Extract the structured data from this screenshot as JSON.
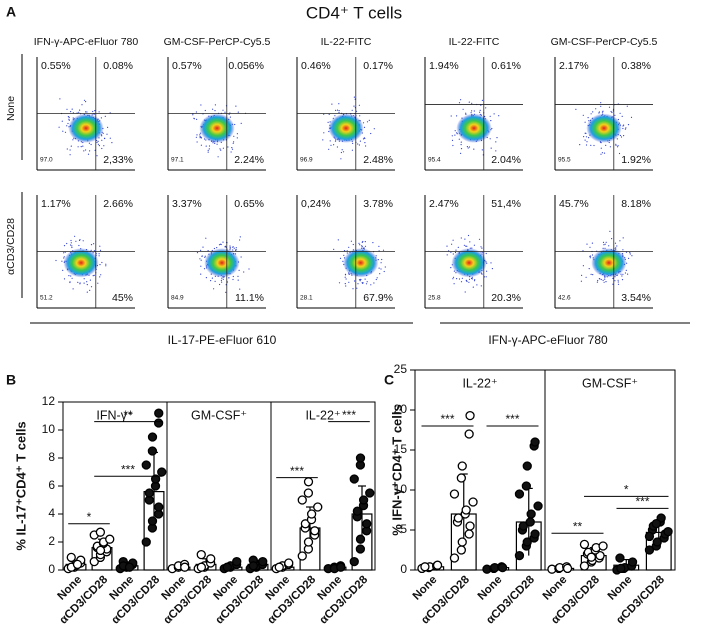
{
  "panel_a": {
    "label": "A",
    "title": "CD4⁺ T cells",
    "row_labels": [
      "None",
      "αCD3/CD28"
    ],
    "columns": [
      {
        "header": "IFN-γ-APC-eFluor 780",
        "plots": [
          {
            "ul": "0.55%",
            "ur": "0.08%",
            "ll": "97.0",
            "lr": "2,33%"
          },
          {
            "ul": "1.17%",
            "ur": "2.66%",
            "ll": "51.2",
            "lr": "45%"
          }
        ]
      },
      {
        "header": "GM-CSF-PerCP-Cy5.5",
        "plots": [
          {
            "ul": "0.57%",
            "ur": "0.056%",
            "ll": "97.1",
            "lr": "2.24%"
          },
          {
            "ul": "3.37%",
            "ur": "0.65%",
            "ll": "84.9",
            "lr": "11.1%"
          }
        ]
      },
      {
        "header": "IL-22-FITC",
        "plots": [
          {
            "ul": "0.46%",
            "ur": "0.17%",
            "ll": "96.9",
            "lr": "2.48%"
          },
          {
            "ul": "0,24%",
            "ur": "3.78%",
            "ll": "28.1",
            "lr": "67.9%"
          }
        ]
      },
      {
        "header": "IL-22-FITC",
        "plots": [
          {
            "ul": "1.94%",
            "ur": "0.61%",
            "ll": "95.4",
            "lr": "2.04%"
          },
          {
            "ul": "2.47%",
            "ur": "51,4%",
            "ll": "25.8",
            "lr": "20.3%"
          }
        ]
      },
      {
        "header": "GM-CSF-PerCP-Cy5.5",
        "plots": [
          {
            "ul": "2.17%",
            "ur": "0.38%",
            "ll": "95.5",
            "lr": "1.92%"
          },
          {
            "ul": "45.7%",
            "ur": "8.18%",
            "ll": "42.6",
            "lr": "3.54%"
          }
        ]
      }
    ],
    "x_labels": [
      "IL-17-PE-eFluor 610",
      "IFN-γ-APC-eFluor 780"
    ]
  },
  "chart_data": [
    {
      "type": "bar",
      "panel": "B",
      "y_label": "% IL-17⁺CD4⁺ T cells",
      "ylim": [
        0,
        12
      ],
      "yticks": [
        0,
        2,
        4,
        6,
        8,
        10,
        12
      ],
      "categories": [
        "None",
        "αCD3/CD28",
        "None",
        "αCD3/CD28"
      ],
      "point_style": [
        "open",
        "open",
        "filled",
        "filled"
      ],
      "groups": [
        {
          "name": "IFN-γ⁺",
          "means": [
            0.4,
            1.6,
            0.3,
            5.6
          ],
          "errors": [
            0.3,
            0.6,
            0.2,
            2.8
          ],
          "points": [
            [
              0.1,
              0.2,
              0.3,
              0.5,
              0.7,
              0.9,
              0.2,
              0.4
            ],
            [
              0.6,
              0.9,
              1.1,
              1.3,
              1.5,
              1.6,
              1.7,
              1.9,
              2.0,
              2.2,
              2.5,
              2.7,
              1.4
            ],
            [
              0.1,
              0.2,
              0.3,
              0.4,
              0.5,
              0.6,
              0.3,
              0.2
            ],
            [
              2.0,
              3.0,
              3.5,
              4.0,
              4.5,
              5.0,
              5.5,
              6.0,
              6.5,
              7.0,
              7.5,
              8.5,
              9.5,
              10.5,
              11.2
            ]
          ],
          "brackets": [
            {
              "label": "*",
              "from": 0,
              "to": 1,
              "y": 3.3
            },
            {
              "label": "***",
              "from": 1,
              "to": 3,
              "y": 6.7
            },
            {
              "label": "**",
              "from": 1,
              "to": 3,
              "y": 10.6
            }
          ]
        },
        {
          "name": "GM-CSF⁺",
          "means": [
            0.2,
            0.4,
            0.2,
            0.4
          ],
          "errors": [
            0.1,
            0.4,
            0.2,
            0.3
          ],
          "points": [
            [
              0.1,
              0.2,
              0.3,
              0.4,
              0.2
            ],
            [
              0.1,
              0.2,
              0.3,
              0.5,
              0.8,
              1.1,
              0.2
            ],
            [
              0.1,
              0.2,
              0.3,
              0.4,
              0.6,
              0.2
            ],
            [
              0.1,
              0.2,
              0.3,
              0.4,
              0.6,
              0.7,
              0.3
            ]
          ],
          "brackets": []
        },
        {
          "name": "IL-22⁺",
          "means": [
            0.2,
            3.0,
            0.2,
            4.0
          ],
          "errors": [
            0.1,
            1.5,
            0.1,
            2.0
          ],
          "points": [
            [
              0.1,
              0.2,
              0.3,
              0.4,
              0.5,
              0.2
            ],
            [
              1.0,
              1.5,
              2.0,
              2.5,
              2.8,
              3.0,
              3.3,
              3.6,
              4.0,
              4.5,
              5.0,
              5.5,
              6.3
            ],
            [
              0.1,
              0.2,
              0.1,
              0.3,
              0.2
            ],
            [
              0.6,
              1.5,
              2.2,
              2.8,
              3.3,
              3.8,
              4.2,
              4.6,
              5.0,
              5.5,
              6.5,
              7.5,
              8.0
            ]
          ],
          "brackets": [
            {
              "label": "***",
              "from": 0,
              "to": 1,
              "y": 6.6
            },
            {
              "label": "***",
              "from": 2,
              "to": 3,
              "y": 10.6
            }
          ]
        }
      ]
    },
    {
      "type": "bar",
      "panel": "C",
      "y_label": "% IFN-γ⁺CD4⁺ T cells",
      "ylim": [
        0,
        25
      ],
      "yticks": [
        0,
        5,
        10,
        15,
        20,
        25
      ],
      "categories": [
        "None",
        "αCD3/CD28",
        "None",
        "αCD3/CD28"
      ],
      "point_style": [
        "open",
        "open",
        "filled",
        "filled"
      ],
      "groups": [
        {
          "name": "IL-22⁺",
          "means": [
            0.4,
            7.0,
            0.3,
            6.0
          ],
          "errors": [
            0.2,
            5.0,
            0.2,
            4.2
          ],
          "points": [
            [
              0.2,
              0.3,
              0.4,
              0.5,
              0.6,
              0.4
            ],
            [
              1.5,
              2.5,
              3.5,
              4.5,
              5.5,
              6.0,
              6.5,
              7.0,
              7.5,
              8.5,
              9.5,
              11.5,
              13.0,
              17.0,
              19.3
            ],
            [
              0.1,
              0.2,
              0.3,
              0.4,
              0.3
            ],
            [
              1.8,
              3.0,
              3.5,
              4.0,
              4.5,
              5.0,
              5.5,
              6.0,
              7.0,
              8.0,
              9.5,
              10.5,
              13.0,
              15.5,
              16.0
            ]
          ],
          "brackets": [
            {
              "label": "***",
              "from": 0,
              "to": 1,
              "y": 18.0
            },
            {
              "label": "***",
              "from": 2,
              "to": 3,
              "y": 18.0
            }
          ]
        },
        {
          "name": "GM-CSF⁺",
          "means": [
            0.2,
            1.8,
            0.6,
            4.7
          ],
          "errors": [
            0.1,
            1.0,
            0.7,
            1.5
          ],
          "points": [
            [
              0.1,
              0.2,
              0.3,
              0.4,
              0.2
            ],
            [
              0.5,
              1.0,
              1.2,
              1.5,
              1.8,
              2.0,
              2.2,
              2.5,
              2.8,
              3.0,
              3.2,
              1.6
            ],
            [
              0.0,
              0.2,
              0.3,
              0.5,
              1.0,
              1.5,
              0.2
            ],
            [
              2.5,
              3.0,
              3.5,
              4.0,
              4.5,
              5.0,
              5.5,
              6.0,
              6.5,
              4.8,
              4.2,
              5.8
            ]
          ],
          "brackets": [
            {
              "label": "**",
              "from": 0,
              "to": 1,
              "y": 4.6
            },
            {
              "label": "***",
              "from": 2,
              "to": 3,
              "y": 7.7
            },
            {
              "label": "*",
              "from": 1,
              "to": 3,
              "y": 9.2
            }
          ]
        }
      ]
    }
  ]
}
